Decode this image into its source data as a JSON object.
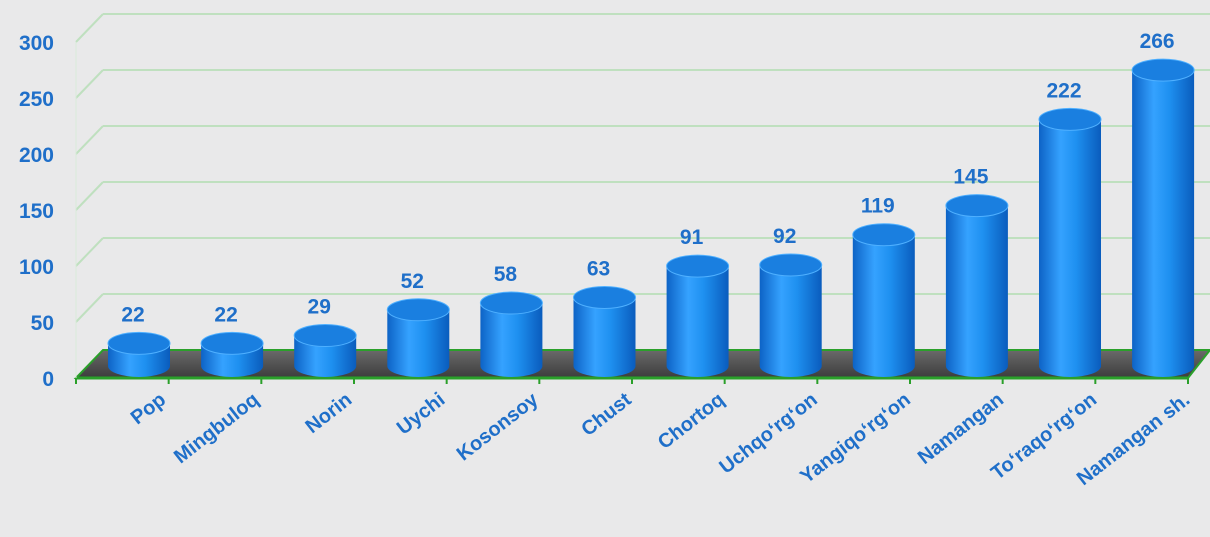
{
  "chart_data": {
    "type": "bar",
    "categories": [
      "Pop",
      "Mingbuloq",
      "Norin",
      "Uychi",
      "Kosonsoy",
      "Chust",
      "Chortoq",
      "Uchqo‘rg‘on",
      "Yangiqo‘rg‘on",
      "Namangan",
      "To‘raqo‘rg‘on",
      "Namangan sh."
    ],
    "values": [
      22,
      22,
      29,
      52,
      58,
      63,
      91,
      92,
      119,
      145,
      222,
      266
    ],
    "y_ticks": [
      "0",
      "50",
      "100",
      "150",
      "200",
      "250",
      "300"
    ],
    "ylim": [
      0,
      300
    ],
    "grid": true,
    "style": "3d-cylinder",
    "colors": {
      "bar": "#1e90f0",
      "text": "#1f6fc9",
      "grid": "#bfe0bf",
      "axis": "#2aa02a",
      "floor": "#505050"
    }
  }
}
